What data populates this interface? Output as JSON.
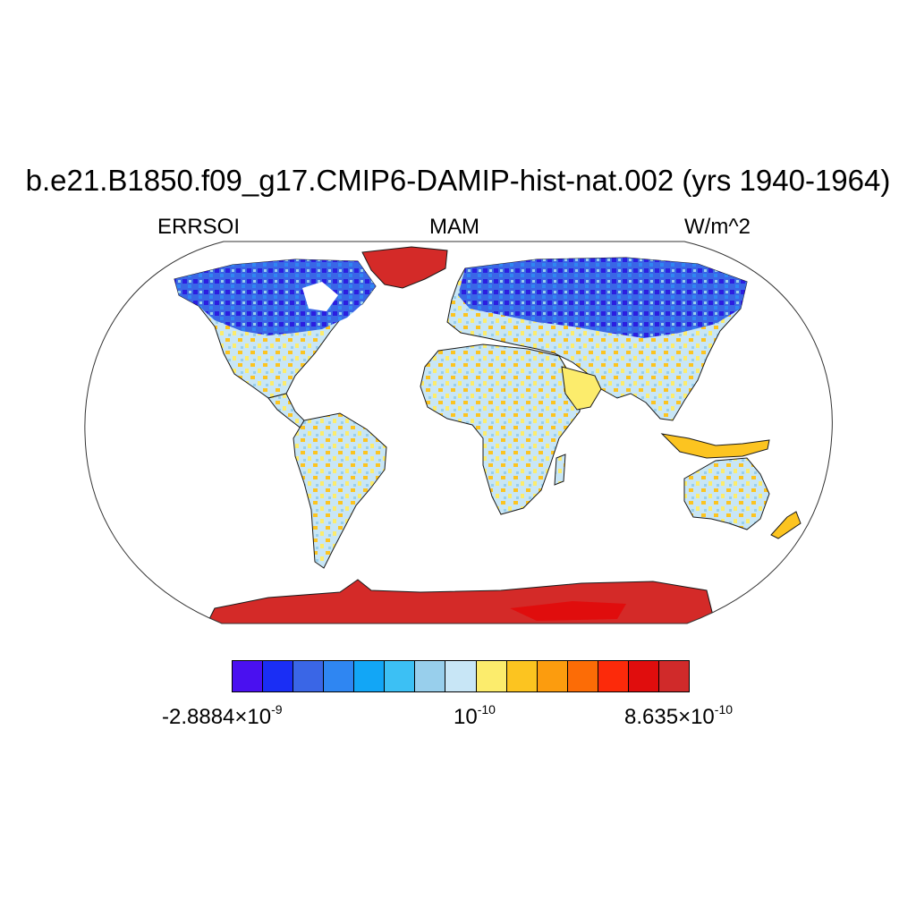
{
  "figure": {
    "title": "b.e21.B1850.f09_g17.CMIP6-DAMIP-hist-nat.002 (yrs 1940-1964)",
    "left_label": "ERRSOI",
    "center_label": "MAM",
    "right_label": "W/m^2"
  },
  "colorbar": {
    "colors": [
      "#4a10f0",
      "#1a2ef5",
      "#3a66e6",
      "#2f86f2",
      "#12a6f6",
      "#3cc0f4",
      "#98cfec",
      "#c8e6f6",
      "#fcec6c",
      "#fcc420",
      "#fc9c0e",
      "#fc6c06",
      "#fc2a0a",
      "#e00d0d",
      "#d02a2a"
    ],
    "labels": {
      "min_mantissa": "-2.8884",
      "min_exponent": "-9",
      "mid_base": "10",
      "mid_exponent": "-10",
      "max_mantissa": "8.635",
      "max_exponent": "-10",
      "times": "×"
    }
  },
  "map": {
    "projection": "Robinson",
    "land_fill": "#c8e6f6",
    "ocean_fill": "#ffffff",
    "antarctica_fill": "#d42a28",
    "greenland_fill": "#d42a28",
    "cold_color": "#3a66e6",
    "deep_cold_color": "#2b1ee0",
    "warm_color": "#fcc420"
  }
}
